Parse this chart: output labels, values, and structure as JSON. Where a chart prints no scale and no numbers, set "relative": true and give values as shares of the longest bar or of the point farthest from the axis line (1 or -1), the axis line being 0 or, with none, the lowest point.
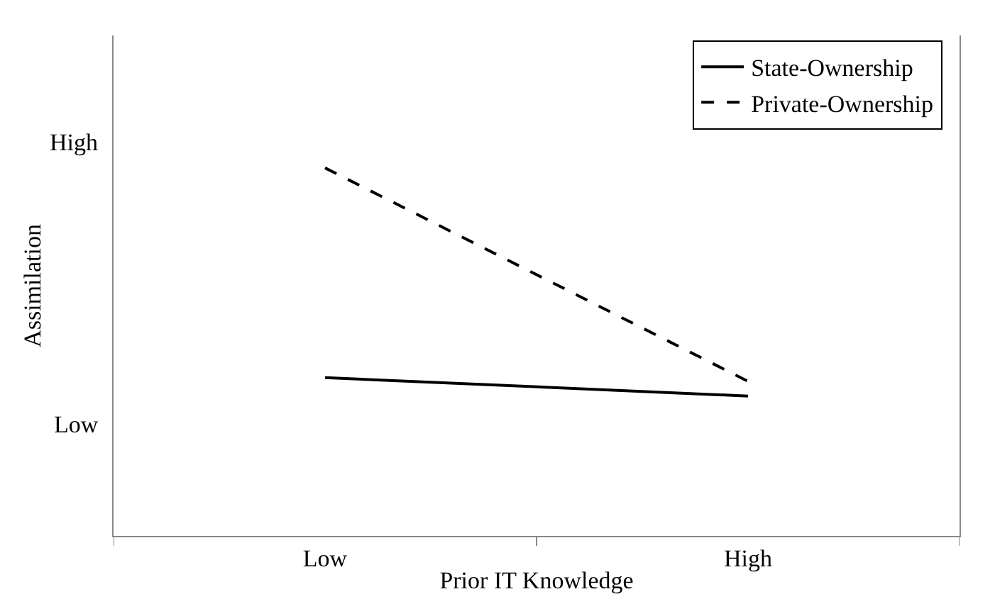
{
  "chart_data": {
    "type": "line",
    "relative": true,
    "xlabel": "Prior IT Knowledge",
    "ylabel": "Assimilation",
    "categories": [
      "Low",
      "High"
    ],
    "annotations": [
      "Low",
      "High"
    ],
    "series": [
      {
        "name": "State-Ownership",
        "color": "#000000",
        "line_style": "solid",
        "values": [
          0.43,
          0.38
        ]
      },
      {
        "name": "Private-Ownership",
        "color": "#000000",
        "line_style": "dashed",
        "values": [
          1,
          0.42
        ]
      }
    ],
    "legend": "top right",
    "marker": "none"
  }
}
